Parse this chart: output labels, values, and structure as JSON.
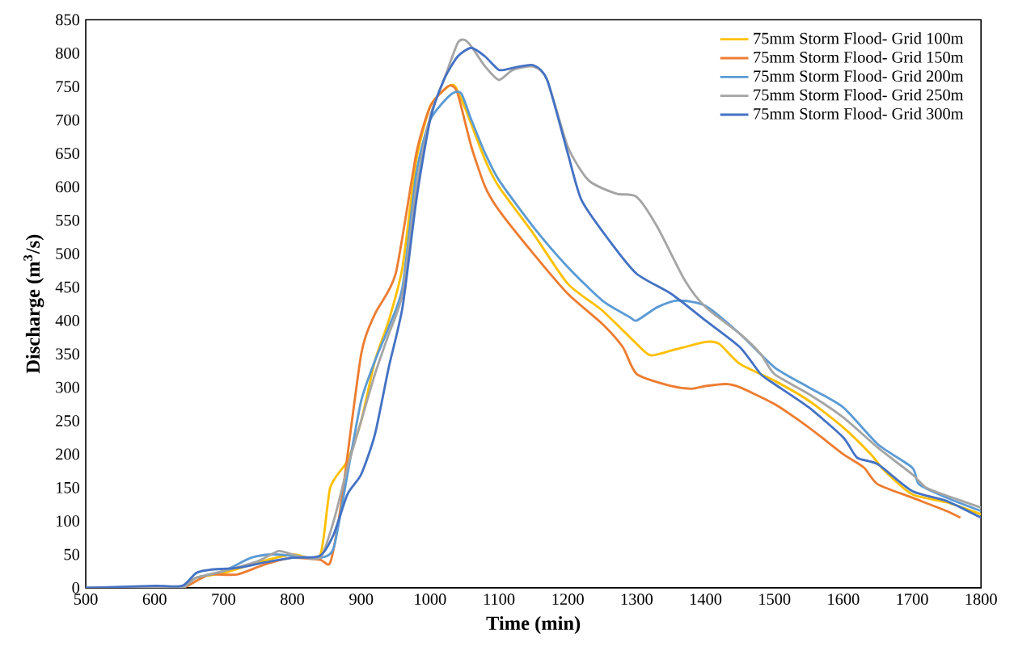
{
  "chart_data": {
    "type": "line",
    "xlabel": "Time (min)",
    "ylabel": "Discharge (m$^{3}$/s)",
    "xlim": [
      500,
      1800
    ],
    "xticks": [
      500,
      600,
      700,
      800,
      900,
      1000,
      1100,
      1200,
      1300,
      1400,
      1500,
      1600,
      1700,
      1800
    ],
    "ylim": [
      0,
      850
    ],
    "yticks": [
      0,
      50,
      100,
      150,
      200,
      250,
      300,
      350,
      400,
      450,
      500,
      550,
      600,
      650,
      700,
      750,
      800,
      850
    ],
    "grid": false,
    "legend": "top right",
    "marker": "none",
    "line_style": "solid",
    "series": [
      {
        "name": "75mm Storm Flood- Grid 100m",
        "color": "#ffc000",
        "x": [
          640,
          660,
          700,
          750,
          800,
          840,
          855,
          880,
          900,
          920,
          940,
          960,
          980,
          1000,
          1020,
          1035,
          1050,
          1080,
          1100,
          1150,
          1200,
          1250,
          1300,
          1320,
          1350,
          1400,
          1420,
          1450,
          1500,
          1550,
          1600,
          1640,
          1660,
          1700,
          1750,
          1800
        ],
        "values": [
          0,
          15,
          22,
          38,
          50,
          48,
          150,
          190,
          250,
          340,
          400,
          480,
          640,
          720,
          745,
          752,
          720,
          640,
          600,
          530,
          455,
          415,
          365,
          348,
          355,
          368,
          365,
          335,
          310,
          280,
          240,
          200,
          175,
          140,
          128,
          110
        ]
      },
      {
        "name": "75mm Storm Flood- Grid 150m",
        "color": "#ed7d31",
        "x": [
          500,
          600,
          640,
          660,
          680,
          720,
          760,
          800,
          840,
          855,
          870,
          900,
          920,
          950,
          980,
          1000,
          1020,
          1030,
          1040,
          1060,
          1080,
          1100,
          1150,
          1200,
          1250,
          1280,
          1300,
          1350,
          1380,
          1400,
          1430,
          1450,
          1500,
          1550,
          1600,
          1630,
          1650,
          1700,
          1750,
          1770
        ],
        "values": [
          0,
          0,
          0,
          10,
          20,
          20,
          35,
          45,
          42,
          38,
          120,
          350,
          410,
          470,
          650,
          720,
          745,
          752,
          740,
          660,
          600,
          565,
          500,
          440,
          395,
          360,
          320,
          302,
          298,
          302,
          305,
          300,
          275,
          240,
          200,
          180,
          155,
          135,
          115,
          105
        ]
      },
      {
        "name": "75mm Storm Flood- Grid 200m",
        "color": "#5b9bd5",
        "x": [
          500,
          600,
          640,
          660,
          700,
          740,
          770,
          800,
          840,
          860,
          880,
          900,
          920,
          940,
          960,
          980,
          1000,
          1030,
          1045,
          1060,
          1080,
          1100,
          1150,
          1200,
          1250,
          1290,
          1300,
          1330,
          1360,
          1400,
          1450,
          1500,
          1550,
          1600,
          1650,
          1700,
          1710,
          1750,
          1800
        ],
        "values": [
          0,
          0,
          0,
          15,
          25,
          45,
          50,
          48,
          45,
          60,
          170,
          280,
          340,
          390,
          450,
          620,
          700,
          738,
          740,
          700,
          650,
          610,
          540,
          480,
          430,
          405,
          400,
          420,
          430,
          422,
          380,
          330,
          300,
          270,
          215,
          180,
          155,
          135,
          115
        ]
      },
      {
        "name": "75mm Storm Flood- Grid 250m",
        "color": "#a5a5a5",
        "x": [
          500,
          600,
          640,
          660,
          700,
          750,
          780,
          800,
          840,
          860,
          880,
          900,
          920,
          940,
          960,
          980,
          1000,
          1020,
          1040,
          1050,
          1060,
          1080,
          1100,
          1120,
          1150,
          1170,
          1200,
          1230,
          1270,
          1300,
          1330,
          1370,
          1400,
          1450,
          1480,
          1500,
          1550,
          1600,
          1650,
          1700,
          1720,
          1750,
          1800
        ],
        "values": [
          0,
          0,
          0,
          15,
          25,
          40,
          55,
          50,
          45,
          100,
          180,
          250,
          320,
          380,
          440,
          600,
          705,
          760,
          815,
          820,
          810,
          780,
          760,
          775,
          780,
          760,
          660,
          610,
          590,
          585,
          540,
          460,
          420,
          380,
          350,
          320,
          290,
          255,
          210,
          170,
          150,
          138,
          120
        ]
      },
      {
        "name": "75mm Storm Flood- Grid 300m",
        "color": "#4472c4",
        "x": [
          500,
          600,
          640,
          660,
          680,
          720,
          760,
          800,
          840,
          860,
          880,
          900,
          920,
          940,
          960,
          980,
          1000,
          1020,
          1040,
          1060,
          1080,
          1100,
          1120,
          1150,
          1170,
          1200,
          1220,
          1260,
          1300,
          1350,
          1400,
          1450,
          1480,
          1500,
          1550,
          1600,
          1620,
          1650,
          1700,
          1750,
          1800
        ],
        "values": [
          0,
          3,
          3,
          22,
          27,
          30,
          38,
          45,
          48,
          80,
          140,
          170,
          230,
          330,
          420,
          580,
          700,
          760,
          795,
          808,
          795,
          775,
          778,
          782,
          760,
          650,
          580,
          520,
          470,
          440,
          400,
          360,
          320,
          305,
          270,
          225,
          195,
          185,
          145,
          130,
          105
        ]
      }
    ]
  }
}
